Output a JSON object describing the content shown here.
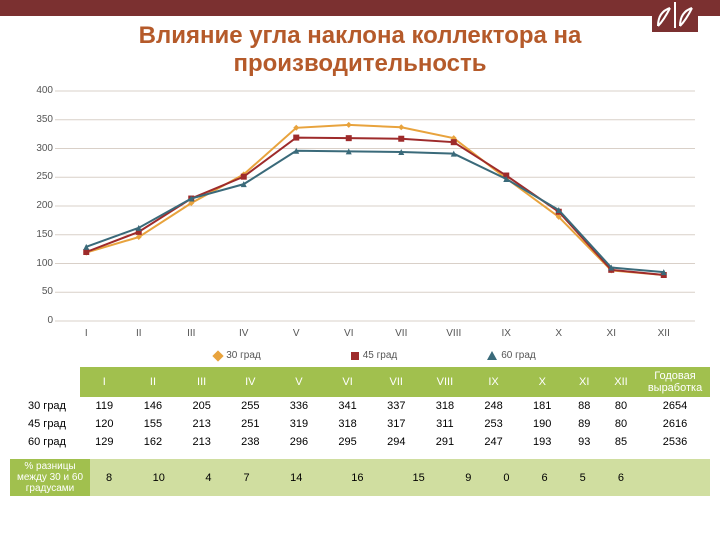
{
  "title": "Влияние угла наклона коллектора на производительность",
  "chart": {
    "type": "line",
    "categories": [
      "I",
      "II",
      "III",
      "IV",
      "V",
      "VI",
      "VII",
      "VIII",
      "IX",
      "X",
      "XI",
      "XII"
    ],
    "series": [
      {
        "name": "30 град",
        "color": "#e8a33d",
        "marker": "diamond",
        "values": [
          119,
          146,
          205,
          255,
          336,
          341,
          337,
          318,
          248,
          181,
          88,
          80
        ]
      },
      {
        "name": "45 град",
        "color": "#9e2b2b",
        "marker": "square",
        "values": [
          120,
          155,
          213,
          251,
          319,
          318,
          317,
          311,
          253,
          190,
          89,
          80
        ]
      },
      {
        "name": "60 град",
        "color": "#3a6a7a",
        "marker": "triangle",
        "values": [
          129,
          162,
          213,
          238,
          296,
          295,
          294,
          291,
          247,
          193,
          93,
          85
        ]
      }
    ],
    "ylim": [
      0,
      400
    ],
    "ytick_step": 50,
    "grid_color": "#d9d0c8",
    "line_width": 2,
    "marker_size": 6,
    "plot_bg": "#ffffff",
    "axis_color": "#777",
    "tick_font_size": 10
  },
  "table": {
    "annual_header": "Годовая выработка",
    "rows": [
      {
        "label": "30 град",
        "values": [
          119,
          146,
          205,
          255,
          336,
          341,
          337,
          318,
          248,
          181,
          88,
          80
        ],
        "annual": 2654
      },
      {
        "label": "45 град",
        "values": [
          120,
          155,
          213,
          251,
          319,
          318,
          317,
          311,
          253,
          190,
          89,
          80
        ],
        "annual": 2616
      },
      {
        "label": "60 град",
        "values": [
          129,
          162,
          213,
          238,
          296,
          295,
          294,
          291,
          247,
          193,
          93,
          85
        ],
        "annual": 2536
      }
    ],
    "header_bg": "#a1c04e",
    "header_fg": "#ffffff"
  },
  "diff": {
    "label": "% разницы между 30 и 60 градусами",
    "values": [
      8,
      10,
      4,
      7,
      14,
      16,
      15,
      9,
      0,
      6,
      5,
      6
    ],
    "row_bg": "#d0dea0"
  },
  "colors": {
    "topbar": "#7b3030",
    "title": "#b55a2a",
    "logo_fg": "#ffffff"
  }
}
